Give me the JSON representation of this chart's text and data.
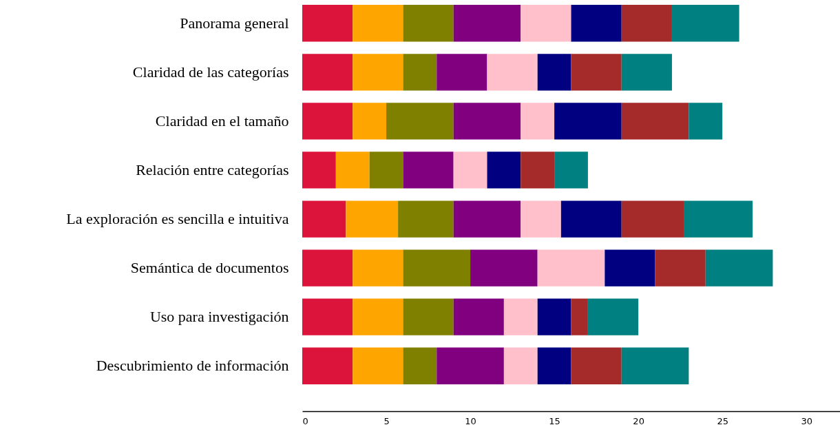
{
  "chart_data": {
    "type": "bar",
    "orientation": "horizontal",
    "stacked": true,
    "grid": false,
    "categories": [
      "Panorama general",
      "Claridad de las categorías",
      "Claridad en el tamaño",
      "Relación entre categorías",
      "La exploración es sencilla e intuitiva",
      "Semántica de documentos",
      "Uso para investigación",
      "Descubrimiento de información"
    ],
    "xlim": [
      0,
      32
    ],
    "xticks": [
      0,
      5,
      10,
      15,
      20,
      25,
      30
    ],
    "series": [
      {
        "color": "#dc143c",
        "values": [
          3,
          3,
          3,
          2,
          2.6,
          3,
          3,
          3
        ]
      },
      {
        "color": "#ffa500",
        "values": [
          3,
          3,
          2,
          2,
          3.1,
          3,
          3,
          3
        ]
      },
      {
        "color": "#808000",
        "values": [
          3,
          2,
          4,
          2,
          3.3,
          4,
          3,
          2
        ]
      },
      {
        "color": "#800080",
        "values": [
          4,
          3,
          4,
          3,
          4,
          4,
          3,
          4
        ]
      },
      {
        "color": "#ffc0cb",
        "values": [
          3,
          3,
          2,
          2,
          2.4,
          4,
          2,
          2
        ]
      },
      {
        "color": "#000080",
        "values": [
          3,
          2,
          4,
          2,
          3.6,
          3,
          2,
          2
        ]
      },
      {
        "color": "#a52a2a",
        "values": [
          3,
          3,
          4,
          2,
          3.7,
          3,
          1,
          3
        ]
      },
      {
        "color": "#008080",
        "values": [
          4,
          3,
          2,
          2,
          4.1,
          4,
          3,
          4
        ]
      }
    ]
  }
}
